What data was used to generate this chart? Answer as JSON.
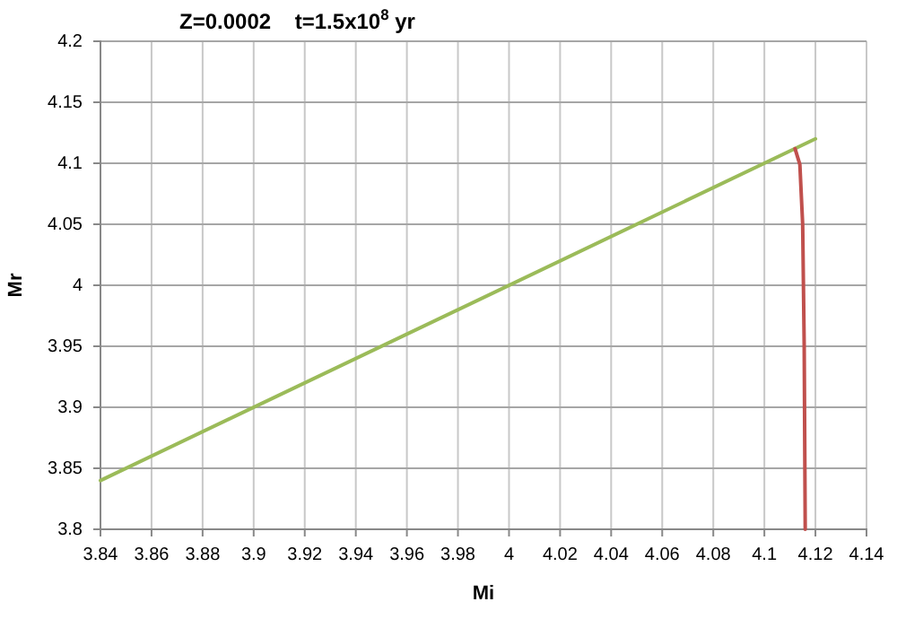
{
  "chart_data": {
    "type": "line",
    "title": "Z=0.0002    t=1.5x10$^{8}$ yr",
    "xlabel": "Mi",
    "ylabel": "Mr",
    "series": [
      {
        "color": "#9bbb59",
        "x": [
          3.84,
          4.12
        ],
        "values": [
          3.84,
          4.12
        ]
      },
      {
        "color": "#c0504d",
        "x": [
          4.112,
          4.1139,
          4.115,
          4.1156,
          4.116
        ],
        "values": [
          4.112,
          4.099,
          4.05,
          3.95,
          3.8
        ]
      }
    ],
    "xlim": [
      3.84,
      4.14
    ],
    "xticks": [
      3.84,
      3.86,
      3.88,
      3.9,
      3.92,
      3.94,
      3.96,
      3.98,
      4,
      4.02,
      4.04,
      4.06,
      4.08,
      4.1,
      4.12,
      4.14
    ],
    "ylim": [
      3.8,
      4.2
    ],
    "yticks": [
      3.8,
      3.85,
      3.9,
      3.95,
      4,
      4.05,
      4.1,
      4.15,
      4.2
    ],
    "grid": true,
    "marker": "none",
    "line_style": "solid"
  }
}
